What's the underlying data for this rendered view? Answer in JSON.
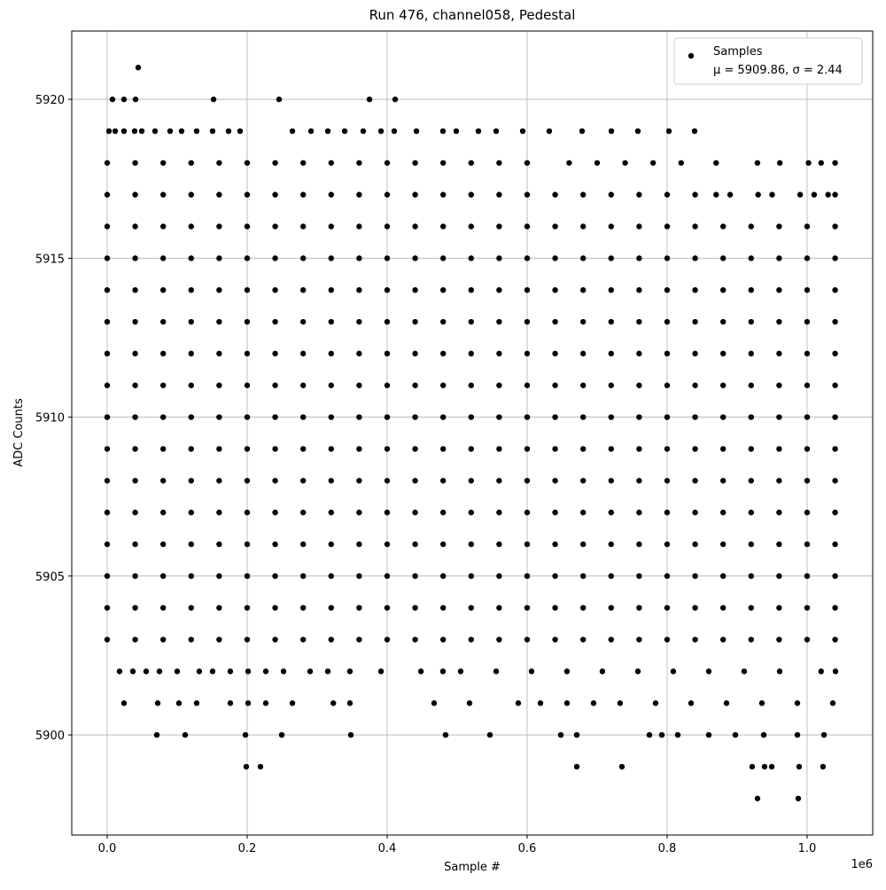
{
  "chart_data": {
    "type": "scatter",
    "title": "Run 476, channel058, Pedestal",
    "x_label": "Sample #",
    "y_label": "ADC Counts",
    "x_offset_label": "1e6",
    "xlim": [
      -50600,
      1093700
    ],
    "ylim": [
      5896.85,
      5922.15
    ],
    "xticks": [
      {
        "value": 0,
        "label": "0.0"
      },
      {
        "value": 200000,
        "label": "0.2"
      },
      {
        "value": 400000,
        "label": "0.4"
      },
      {
        "value": 600000,
        "label": "0.6"
      },
      {
        "value": 800000,
        "label": "0.8"
      },
      {
        "value": 1000000,
        "label": "1.0"
      }
    ],
    "yticks": [
      5900,
      5905,
      5910,
      5915,
      5920
    ],
    "grid": true,
    "legend_position": "upper right",
    "legend_note": "μ = 5909.86, σ = 2.44",
    "series": [
      {
        "name": "Samples",
        "color": "#000000",
        "x": [
          44300,
          7600,
          24000,
          40500,
          152000,
          245600,
          374700,
          411400,
          2500,
          11400,
          24000,
          39200,
          49400,
          68400,
          89900,
          106300,
          127800,
          150600,
          173400,
          189900,
          264600,
          291200,
          315200,
          339300,
          365800,
          391200,
          410100,
          441800,
          479700,
          498700,
          530400,
          555700,
          593700,
          631600,
          678500,
          720300,
          758200,
          802500,
          839200,
          0,
          40000,
          80000,
          120000,
          160000,
          200000,
          240000,
          280000,
          320000,
          360000,
          400000,
          440000,
          480000,
          520000,
          560000,
          600000,
          660000,
          700000,
          740000,
          780000,
          820000,
          870000,
          929000,
          961000,
          1002000,
          1020000,
          1040000,
          0,
          40000,
          80000,
          120000,
          160000,
          200000,
          240000,
          280000,
          320000,
          360000,
          400000,
          440000,
          480000,
          520000,
          560000,
          600000,
          640000,
          680000,
          720000,
          760000,
          800000,
          840000,
          870000,
          890000,
          930000,
          950000,
          990000,
          1010000,
          1030000,
          1040000,
          0,
          40000,
          80000,
          120000,
          160000,
          200000,
          240000,
          280000,
          320000,
          360000,
          400000,
          440000,
          480000,
          520000,
          560000,
          600000,
          640000,
          680000,
          720000,
          760000,
          800000,
          840000,
          880000,
          920000,
          960000,
          1000000,
          1040000,
          0,
          40000,
          80000,
          120000,
          160000,
          200000,
          240000,
          280000,
          320000,
          360000,
          400000,
          440000,
          480000,
          520000,
          560000,
          600000,
          640000,
          680000,
          720000,
          760000,
          800000,
          840000,
          880000,
          920000,
          960000,
          1000000,
          1040000,
          0,
          40000,
          80000,
          120000,
          160000,
          200000,
          240000,
          280000,
          320000,
          360000,
          400000,
          440000,
          480000,
          520000,
          560000,
          600000,
          640000,
          680000,
          720000,
          760000,
          800000,
          840000,
          880000,
          920000,
          960000,
          1000000,
          1040000,
          0,
          40000,
          80000,
          120000,
          160000,
          200000,
          240000,
          280000,
          320000,
          360000,
          400000,
          440000,
          480000,
          520000,
          560000,
          600000,
          640000,
          680000,
          720000,
          760000,
          800000,
          840000,
          880000,
          920000,
          960000,
          1000000,
          1040000,
          0,
          40000,
          80000,
          120000,
          160000,
          200000,
          240000,
          280000,
          320000,
          360000,
          400000,
          440000,
          480000,
          520000,
          560000,
          600000,
          640000,
          680000,
          720000,
          760000,
          800000,
          840000,
          880000,
          920000,
          960000,
          1000000,
          1040000,
          0,
          40000,
          80000,
          120000,
          160000,
          200000,
          240000,
          280000,
          320000,
          360000,
          400000,
          440000,
          480000,
          520000,
          560000,
          600000,
          640000,
          680000,
          720000,
          760000,
          800000,
          840000,
          880000,
          920000,
          960000,
          1000000,
          1040000,
          0,
          40000,
          80000,
          120000,
          160000,
          200000,
          240000,
          280000,
          320000,
          360000,
          400000,
          440000,
          480000,
          520000,
          560000,
          600000,
          640000,
          680000,
          720000,
          760000,
          800000,
          840000,
          880000,
          920000,
          960000,
          1000000,
          1040000,
          0,
          40000,
          80000,
          120000,
          160000,
          200000,
          240000,
          280000,
          320000,
          360000,
          400000,
          440000,
          480000,
          520000,
          560000,
          600000,
          640000,
          680000,
          720000,
          760000,
          800000,
          840000,
          880000,
          920000,
          960000,
          1000000,
          1040000,
          0,
          40000,
          80000,
          120000,
          160000,
          200000,
          240000,
          280000,
          320000,
          360000,
          400000,
          440000,
          480000,
          520000,
          560000,
          600000,
          640000,
          680000,
          720000,
          760000,
          800000,
          840000,
          880000,
          920000,
          960000,
          1000000,
          1040000,
          0,
          40000,
          80000,
          120000,
          160000,
          200000,
          240000,
          280000,
          320000,
          360000,
          400000,
          440000,
          480000,
          520000,
          560000,
          600000,
          640000,
          680000,
          720000,
          760000,
          800000,
          840000,
          880000,
          920000,
          960000,
          1000000,
          1040000,
          0,
          40000,
          80000,
          120000,
          160000,
          200000,
          240000,
          280000,
          320000,
          360000,
          400000,
          440000,
          480000,
          520000,
          560000,
          600000,
          640000,
          680000,
          720000,
          760000,
          800000,
          840000,
          880000,
          920000,
          960000,
          1000000,
          1040000,
          0,
          40000,
          80000,
          120000,
          160000,
          200000,
          240000,
          280000,
          320000,
          360000,
          400000,
          440000,
          480000,
          520000,
          560000,
          600000,
          640000,
          680000,
          720000,
          760000,
          800000,
          840000,
          880000,
          920000,
          960000,
          1000000,
          1040000,
          0,
          40000,
          80000,
          120000,
          160000,
          200000,
          240000,
          280000,
          320000,
          360000,
          400000,
          440000,
          480000,
          520000,
          560000,
          600000,
          640000,
          680000,
          720000,
          760000,
          800000,
          840000,
          880000,
          920000,
          960000,
          1000000,
          1040000,
          0,
          40000,
          80000,
          120000,
          160000,
          200000,
          240000,
          280000,
          320000,
          360000,
          400000,
          440000,
          480000,
          520000,
          560000,
          600000,
          640000,
          680000,
          720000,
          760000,
          800000,
          840000,
          880000,
          920000,
          960000,
          1000000,
          1040000,
          17700,
          36700,
          55700,
          74700,
          100000,
          131600,
          150600,
          175900,
          201300,
          226600,
          251900,
          289900,
          315200,
          346800,
          391200,
          448200,
          479700,
          505000,
          555700,
          606300,
          656900,
          707500,
          758200,
          808800,
          859500,
          910100,
          960800,
          1040500,
          1020000,
          24000,
          72200,
          102500,
          127800,
          175900,
          201300,
          226600,
          264600,
          323100,
          346800,
          467100,
          517700,
          587300,
          619000,
          656900,
          694900,
          732800,
          783500,
          834200,
          884800,
          935400,
          986100,
          1036700,
          70900,
          111400,
          197500,
          249400,
          348100,
          483500,
          546800,
          648100,
          670900,
          774700,
          792400,
          815200,
          859500,
          897500,
          938000,
          986100,
          1024100,
          198700,
          219000,
          670900,
          735400,
          921500,
          939200,
          949400,
          988600,
          1022700,
          929100,
          987300
        ],
        "values": [
          5921,
          5920,
          5920,
          5920,
          5920,
          5920,
          5920,
          5920,
          5919,
          5919,
          5919,
          5919,
          5919,
          5919,
          5919,
          5919,
          5919,
          5919,
          5919,
          5919,
          5919,
          5919,
          5919,
          5919,
          5919,
          5919,
          5919,
          5919,
          5919,
          5919,
          5919,
          5919,
          5919,
          5919,
          5919,
          5919,
          5919,
          5919,
          5919,
          5918,
          5918,
          5918,
          5918,
          5918,
          5918,
          5918,
          5918,
          5918,
          5918,
          5918,
          5918,
          5918,
          5918,
          5918,
          5918,
          5918,
          5918,
          5918,
          5918,
          5918,
          5918,
          5918,
          5918,
          5918,
          5918,
          5918,
          5917,
          5917,
          5917,
          5917,
          5917,
          5917,
          5917,
          5917,
          5917,
          5917,
          5917,
          5917,
          5917,
          5917,
          5917,
          5917,
          5917,
          5917,
          5917,
          5917,
          5917,
          5917,
          5917,
          5917,
          5917,
          5917,
          5917,
          5917,
          5917,
          5917,
          5916,
          5916,
          5916,
          5916,
          5916,
          5916,
          5916,
          5916,
          5916,
          5916,
          5916,
          5916,
          5916,
          5916,
          5916,
          5916,
          5916,
          5916,
          5916,
          5916,
          5916,
          5916,
          5916,
          5916,
          5916,
          5916,
          5916,
          5915,
          5915,
          5915,
          5915,
          5915,
          5915,
          5915,
          5915,
          5915,
          5915,
          5915,
          5915,
          5915,
          5915,
          5915,
          5915,
          5915,
          5915,
          5915,
          5915,
          5915,
          5915,
          5915,
          5915,
          5915,
          5915,
          5915,
          5914,
          5914,
          5914,
          5914,
          5914,
          5914,
          5914,
          5914,
          5914,
          5914,
          5914,
          5914,
          5914,
          5914,
          5914,
          5914,
          5914,
          5914,
          5914,
          5914,
          5914,
          5914,
          5914,
          5914,
          5914,
          5914,
          5914,
          5913,
          5913,
          5913,
          5913,
          5913,
          5913,
          5913,
          5913,
          5913,
          5913,
          5913,
          5913,
          5913,
          5913,
          5913,
          5913,
          5913,
          5913,
          5913,
          5913,
          5913,
          5913,
          5913,
          5913,
          5913,
          5913,
          5913,
          5912,
          5912,
          5912,
          5912,
          5912,
          5912,
          5912,
          5912,
          5912,
          5912,
          5912,
          5912,
          5912,
          5912,
          5912,
          5912,
          5912,
          5912,
          5912,
          5912,
          5912,
          5912,
          5912,
          5912,
          5912,
          5912,
          5912,
          5911,
          5911,
          5911,
          5911,
          5911,
          5911,
          5911,
          5911,
          5911,
          5911,
          5911,
          5911,
          5911,
          5911,
          5911,
          5911,
          5911,
          5911,
          5911,
          5911,
          5911,
          5911,
          5911,
          5911,
          5911,
          5911,
          5911,
          5910,
          5910,
          5910,
          5910,
          5910,
          5910,
          5910,
          5910,
          5910,
          5910,
          5910,
          5910,
          5910,
          5910,
          5910,
          5910,
          5910,
          5910,
          5910,
          5910,
          5910,
          5910,
          5910,
          5910,
          5910,
          5910,
          5910,
          5909,
          5909,
          5909,
          5909,
          5909,
          5909,
          5909,
          5909,
          5909,
          5909,
          5909,
          5909,
          5909,
          5909,
          5909,
          5909,
          5909,
          5909,
          5909,
          5909,
          5909,
          5909,
          5909,
          5909,
          5909,
          5909,
          5909,
          5908,
          5908,
          5908,
          5908,
          5908,
          5908,
          5908,
          5908,
          5908,
          5908,
          5908,
          5908,
          5908,
          5908,
          5908,
          5908,
          5908,
          5908,
          5908,
          5908,
          5908,
          5908,
          5908,
          5908,
          5908,
          5908,
          5908,
          5907,
          5907,
          5907,
          5907,
          5907,
          5907,
          5907,
          5907,
          5907,
          5907,
          5907,
          5907,
          5907,
          5907,
          5907,
          5907,
          5907,
          5907,
          5907,
          5907,
          5907,
          5907,
          5907,
          5907,
          5907,
          5907,
          5907,
          5906,
          5906,
          5906,
          5906,
          5906,
          5906,
          5906,
          5906,
          5906,
          5906,
          5906,
          5906,
          5906,
          5906,
          5906,
          5906,
          5906,
          5906,
          5906,
          5906,
          5906,
          5906,
          5906,
          5906,
          5906,
          5906,
          5906,
          5905,
          5905,
          5905,
          5905,
          5905,
          5905,
          5905,
          5905,
          5905,
          5905,
          5905,
          5905,
          5905,
          5905,
          5905,
          5905,
          5905,
          5905,
          5905,
          5905,
          5905,
          5905,
          5905,
          5905,
          5905,
          5905,
          5905,
          5904,
          5904,
          5904,
          5904,
          5904,
          5904,
          5904,
          5904,
          5904,
          5904,
          5904,
          5904,
          5904,
          5904,
          5904,
          5904,
          5904,
          5904,
          5904,
          5904,
          5904,
          5904,
          5904,
          5904,
          5904,
          5904,
          5904,
          5903,
          5903,
          5903,
          5903,
          5903,
          5903,
          5903,
          5903,
          5903,
          5903,
          5903,
          5903,
          5903,
          5903,
          5903,
          5903,
          5903,
          5903,
          5903,
          5903,
          5903,
          5903,
          5903,
          5903,
          5903,
          5903,
          5903,
          5902,
          5902,
          5902,
          5902,
          5902,
          5902,
          5902,
          5902,
          5902,
          5902,
          5902,
          5902,
          5902,
          5902,
          5902,
          5902,
          5902,
          5902,
          5902,
          5902,
          5902,
          5902,
          5902,
          5902,
          5902,
          5902,
          5902,
          5902,
          5902,
          5901,
          5901,
          5901,
          5901,
          5901,
          5901,
          5901,
          5901,
          5901,
          5901,
          5901,
          5901,
          5901,
          5901,
          5901,
          5901,
          5901,
          5901,
          5901,
          5901,
          5901,
          5901,
          5901,
          5900,
          5900,
          5900,
          5900,
          5900,
          5900,
          5900,
          5900,
          5900,
          5900,
          5900,
          5900,
          5900,
          5900,
          5900,
          5900,
          5900,
          5899,
          5899,
          5899,
          5899,
          5899,
          5899,
          5899,
          5899,
          5899,
          5898,
          5898
        ]
      }
    ]
  }
}
